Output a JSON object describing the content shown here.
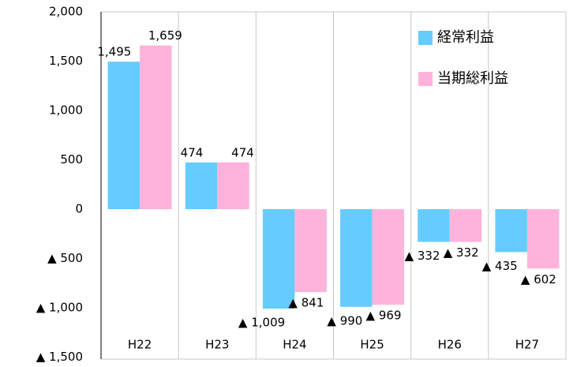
{
  "chart_data": {
    "type": "bar",
    "categories": [
      "H22",
      "H23",
      "H24",
      "H25",
      "H26",
      "H27"
    ],
    "series": [
      {
        "name": "経常利益",
        "color": "#66ccff",
        "values": [
          1495,
          474,
          -1009,
          -990,
          -332,
          -435
        ],
        "value_labels": [
          "1,495",
          "474",
          "▲ 1,009",
          "▲ 990",
          "▲ 332",
          "▲ 435"
        ]
      },
      {
        "name": "当期総利益",
        "color": "#ffb3dc",
        "values": [
          1659,
          474,
          -841,
          -969,
          -332,
          -602
        ],
        "value_labels": [
          "1,659",
          "474",
          "▲ 841",
          "▲ 969",
          "▲ 332",
          "▲ 602"
        ]
      }
    ],
    "ylim": [
      -1500,
      2000
    ],
    "yticks": [
      {
        "value": 2000,
        "label": "2,000"
      },
      {
        "value": 1500,
        "label": "1,500"
      },
      {
        "value": 1000,
        "label": "1,000"
      },
      500,
      0,
      {
        "value": -500,
        "label": "▲ 500"
      },
      {
        "value": -1000,
        "label": "▲ 1,000"
      },
      {
        "value": -1500,
        "label": "▲ 1,500"
      }
    ],
    "grid": false,
    "legend": "top-right"
  }
}
